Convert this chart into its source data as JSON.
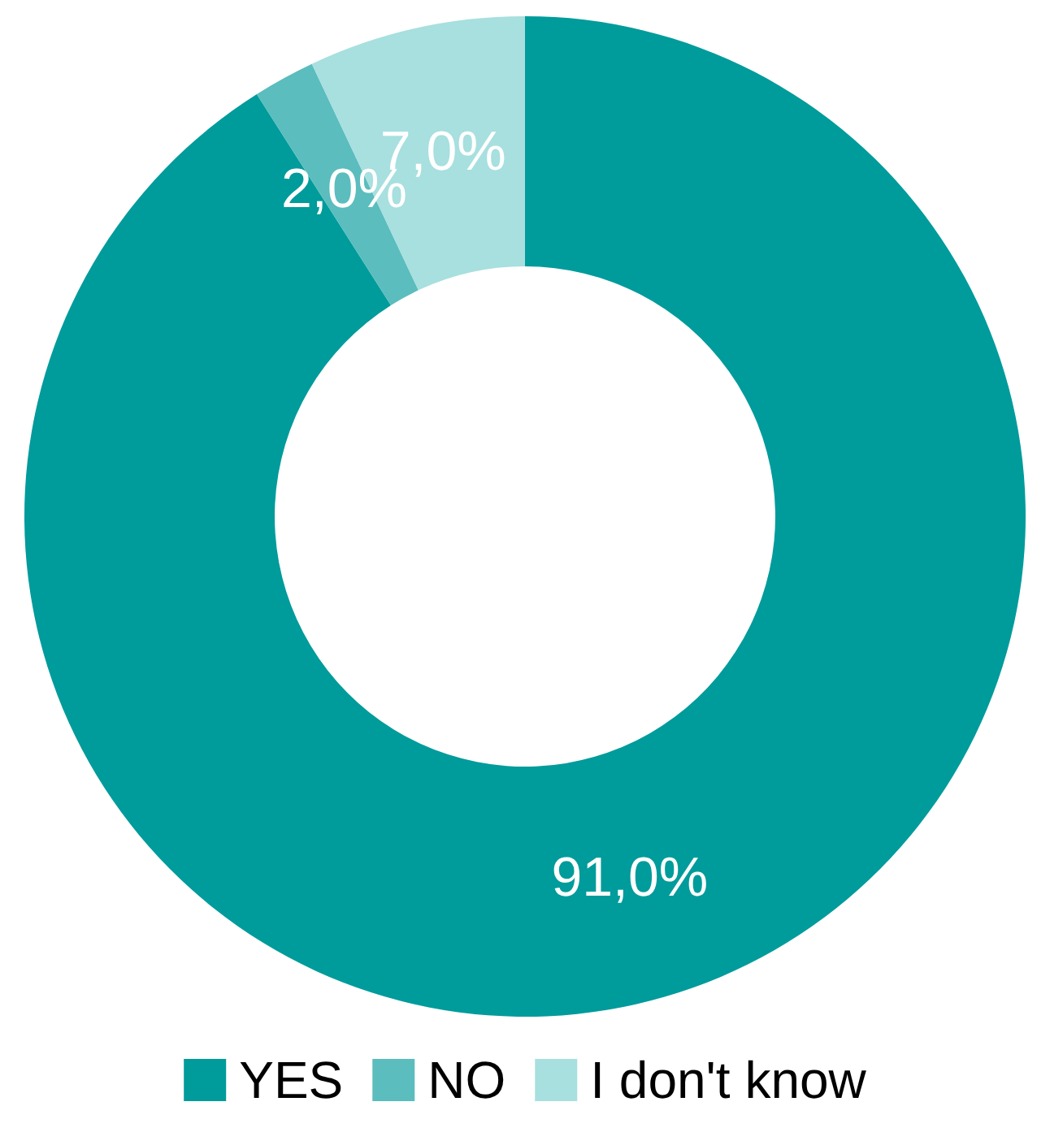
{
  "chart_data": {
    "type": "donut",
    "categories": [
      "YES",
      "NO",
      "I don't know"
    ],
    "values": [
      91,
      2,
      7
    ],
    "colors": [
      "#009b9b",
      "#5bbdbd",
      "#a8dfdf"
    ],
    "value_labels": [
      "91,0%",
      "2,0%",
      "7,0%"
    ],
    "legend": "bottom"
  }
}
